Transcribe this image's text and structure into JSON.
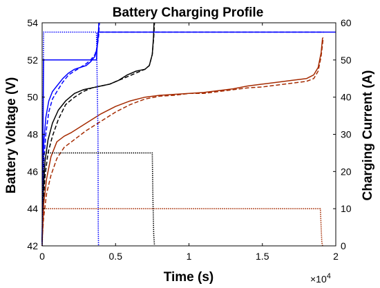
{
  "chart_data": {
    "type": "line",
    "title": "Battery Charging Profile",
    "xlabel": "Time (s)",
    "ylabel_left": "Battery Voltage (V)",
    "ylabel_right": "Charging Current (A)",
    "x_exponent_label": "×10",
    "x_exponent_power": "4",
    "xlim": [
      0,
      20000
    ],
    "ylim_left": [
      42,
      54
    ],
    "ylim_right": [
      0,
      60
    ],
    "x_tick_values": [
      0,
      5000,
      10000,
      15000,
      20000
    ],
    "x_tick_labels": [
      "0",
      "0.5",
      "1",
      "1.5",
      "2"
    ],
    "y_left_ticks": [
      "42",
      "44",
      "46",
      "48",
      "50",
      "52",
      "54"
    ],
    "y_right_ticks": [
      "0",
      "10",
      "20",
      "30",
      "40",
      "50",
      "60"
    ],
    "grid": false,
    "legend": "none",
    "series": [
      {
        "axis": "left",
        "color": "#0000ff",
        "style": "solid",
        "x": [
          0,
          50,
          120,
          250,
          450,
          700,
          1000,
          1400,
          1800,
          2200,
          2600,
          3000,
          3300,
          3600,
          3750,
          3820,
          3860
        ],
        "y": [
          42.2,
          46.2,
          47.6,
          48.9,
          49.8,
          50.3,
          50.6,
          51.0,
          51.3,
          51.5,
          51.6,
          51.7,
          51.9,
          52.2,
          52.7,
          53.3,
          54.0
        ]
      },
      {
        "axis": "left",
        "color": "#0000ff",
        "style": "dashed",
        "x": [
          0,
          50,
          120,
          250,
          450,
          700,
          1000,
          1400,
          1800,
          2200,
          2600,
          3000,
          3300,
          3600,
          3750,
          3850,
          3900
        ],
        "y": [
          42.2,
          45.0,
          46.6,
          48.0,
          49.2,
          49.9,
          50.3,
          50.8,
          51.2,
          51.4,
          51.6,
          51.8,
          52.0,
          52.3,
          52.7,
          53.3,
          54.0
        ]
      },
      {
        "axis": "left",
        "color": "#000000",
        "style": "solid",
        "x": [
          0,
          80,
          200,
          400,
          700,
          1100,
          1600,
          2200,
          2800,
          3400,
          4000,
          4600,
          5200,
          5800,
          6400,
          7000,
          7300,
          7500,
          7580,
          7620
        ],
        "y": [
          42.3,
          45.0,
          46.6,
          47.7,
          48.6,
          49.3,
          49.8,
          50.2,
          50.4,
          50.5,
          50.6,
          50.7,
          50.9,
          51.2,
          51.4,
          51.5,
          51.7,
          52.3,
          53.2,
          54.0
        ]
      },
      {
        "axis": "left",
        "color": "#000000",
        "style": "dashed",
        "x": [
          0,
          80,
          200,
          400,
          700,
          1100,
          1600,
          2200,
          2800,
          3400,
          4000,
          4600,
          5200,
          5800,
          6400,
          7000,
          7300,
          7500,
          7600,
          7650
        ],
        "y": [
          42.3,
          44.3,
          45.8,
          47.0,
          47.9,
          48.8,
          49.6,
          50.0,
          50.3,
          50.5,
          50.6,
          50.7,
          50.9,
          51.1,
          51.3,
          51.5,
          51.7,
          52.3,
          53.2,
          54.0
        ]
      },
      {
        "axis": "left",
        "color": "#a52a00",
        "style": "solid",
        "x": [
          0,
          100,
          300,
          600,
          1000,
          1500,
          2000,
          3000,
          4000,
          5000,
          6000,
          7000,
          8000,
          9000,
          10000,
          11000,
          12000,
          13000,
          14000,
          15000,
          16000,
          17000,
          18000,
          18500,
          18800,
          19000,
          19100
        ],
        "y": [
          42.3,
          44.2,
          45.6,
          46.8,
          47.6,
          47.9,
          48.1,
          48.6,
          49.1,
          49.5,
          49.8,
          50.0,
          50.1,
          50.15,
          50.2,
          50.25,
          50.35,
          50.45,
          50.6,
          50.7,
          50.8,
          50.9,
          51.0,
          51.2,
          51.6,
          52.4,
          53.2
        ]
      },
      {
        "axis": "left",
        "color": "#a52a00",
        "style": "dashed",
        "x": [
          0,
          100,
          300,
          600,
          1000,
          1500,
          2000,
          3000,
          4000,
          5000,
          6000,
          7000,
          8000,
          9000,
          10000,
          11000,
          12000,
          13000,
          14000,
          15000,
          16000,
          17000,
          18000,
          18500,
          18800,
          19000,
          19150
        ],
        "y": [
          42.3,
          43.5,
          44.8,
          45.8,
          46.7,
          47.3,
          47.6,
          48.2,
          48.7,
          49.2,
          49.6,
          49.9,
          50.05,
          50.1,
          50.2,
          50.2,
          50.3,
          50.4,
          50.5,
          50.55,
          50.65,
          50.75,
          50.85,
          51.0,
          51.4,
          52.2,
          53.2
        ]
      },
      {
        "axis": "right",
        "color": "#0000ff",
        "style": "solid",
        "x": [
          0,
          100,
          3700,
          3800,
          3900,
          20000
        ],
        "y": [
          0,
          50,
          50,
          57.5,
          57.5,
          57.5
        ]
      },
      {
        "axis": "right",
        "color": "#0000ff",
        "style": "dashed",
        "x": [
          3900,
          19200
        ],
        "y": [
          57.5,
          57.5
        ]
      },
      {
        "axis": "right",
        "color": "#0000ff",
        "style": "dotted",
        "x": [
          0,
          100,
          3700,
          3800,
          3820,
          3840
        ],
        "y": [
          0,
          57.5,
          57.5,
          30,
          5,
          0
        ]
      },
      {
        "axis": "right",
        "color": "#000000",
        "style": "dotted",
        "x": [
          0,
          100,
          7500,
          7550,
          7600,
          7650
        ],
        "y": [
          0,
          25,
          25,
          12,
          3,
          0
        ]
      },
      {
        "axis": "right",
        "color": "#a52a00",
        "style": "dotted",
        "x": [
          0,
          100,
          18950,
          19000,
          19050,
          19100
        ],
        "y": [
          0,
          10,
          10,
          5,
          1,
          0
        ]
      }
    ]
  }
}
